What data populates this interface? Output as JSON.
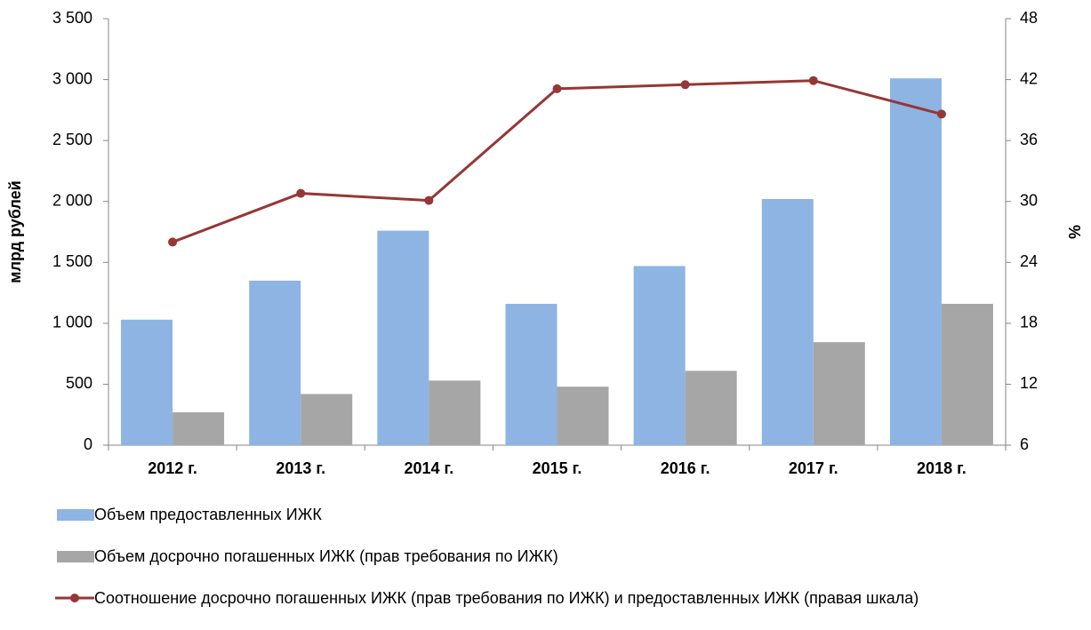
{
  "chart_data": {
    "type": "bar-line",
    "categories": [
      "2012 г.",
      "2013 г.",
      "2014 г.",
      "2015 г.",
      "2016 г.",
      "2017 г.",
      "2018 г."
    ],
    "series": [
      {
        "name": "Объем предоставленных ИЖК",
        "type": "bar",
        "color": "#8db4e2",
        "values": [
          1030,
          1350,
          1760,
          1160,
          1470,
          2020,
          3010
        ]
      },
      {
        "name": "Объем досрочно погашенных ИЖК (прав требования по ИЖК)",
        "type": "bar",
        "color": "#a6a6a6",
        "values": [
          270,
          420,
          530,
          480,
          610,
          845,
          1160
        ]
      },
      {
        "name": "Соотношение досрочно погашенных ИЖК (прав требования по ИЖК) и предоставленных ИЖК (правая шкала)",
        "type": "line",
        "axis": "y2",
        "color": "#953735",
        "values": [
          26.0,
          30.8,
          30.1,
          41.1,
          41.5,
          41.9,
          38.6
        ]
      }
    ],
    "ylabel": "млрд рублей",
    "y2label": "%",
    "ylim": [
      0,
      3500
    ],
    "yticks": [
      0,
      500,
      {
        "value": 1000,
        "label": "1 000"
      },
      {
        "value": 1500,
        "label": "1 500"
      },
      {
        "value": 2000,
        "label": "2 000"
      },
      {
        "value": 2500,
        "label": "2 500"
      },
      {
        "value": 3000,
        "label": "3 000"
      },
      {
        "value": 3500,
        "label": "3 500"
      }
    ],
    "y2lim": [
      6,
      48
    ],
    "y2ticks": [
      6,
      12,
      18,
      24,
      30,
      36,
      42,
      48
    ],
    "grid": false,
    "legend": "bottom"
  }
}
